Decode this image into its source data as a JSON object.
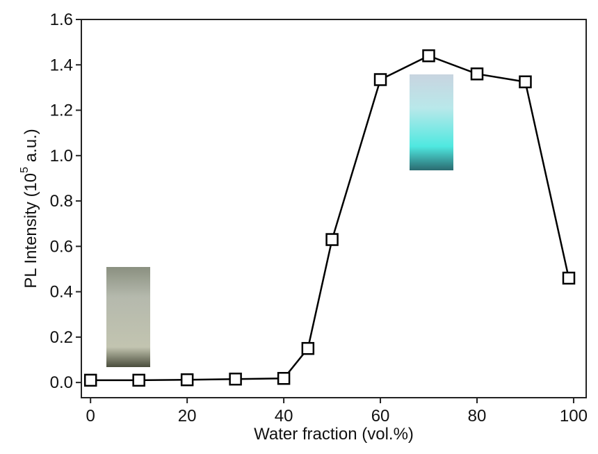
{
  "chart_data": {
    "type": "line",
    "x_label": "Water fraction (vol.%)",
    "y_label": [
      "PL Intensity (10",
      "5",
      " a.u.)"
    ],
    "series": [
      {
        "color": "#000000",
        "marker": "square",
        "x": [
          0,
          10,
          20,
          30,
          40,
          45,
          50,
          60,
          70,
          80,
          90,
          99
        ],
        "values": [
          0.01,
          0.01,
          0.012,
          0.015,
          0.018,
          0.15,
          0.63,
          1.335,
          1.44,
          1.36,
          1.325,
          0.46
        ]
      }
    ],
    "xlim": [
      -1.9,
      102.6
    ],
    "xticks": [
      0,
      20,
      40,
      60,
      80,
      100
    ],
    "ylim": [
      -0.067,
      1.6
    ],
    "yticks": [
      {
        "value": 0,
        "label": "0.0"
      },
      0.2,
      0.4,
      0.6,
      0.8,
      {
        "value": 1,
        "label": "1.0"
      },
      1.2,
      1.4,
      1.6
    ]
  }
}
